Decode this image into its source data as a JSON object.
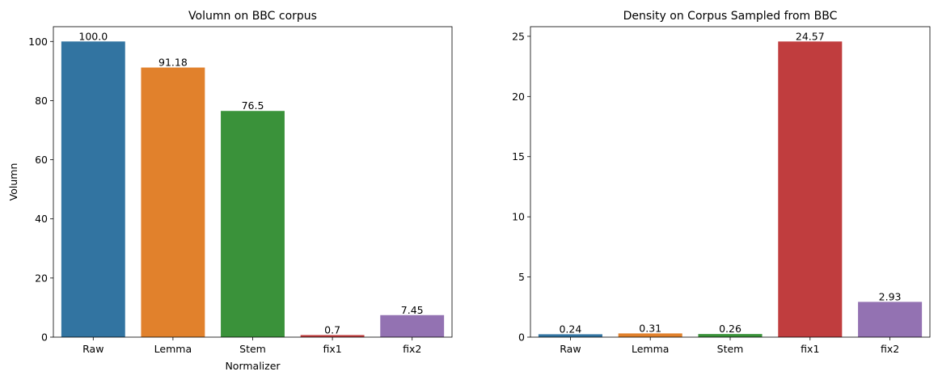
{
  "chart_data": [
    {
      "type": "bar",
      "title": "Volumn on BBC corpus",
      "xlabel": "Normalizer",
      "ylabel": "Volumn",
      "categories": [
        "Raw",
        "Lemma",
        "Stem",
        "fix1",
        "fix2"
      ],
      "values": [
        100.0,
        91.18,
        76.5,
        0.7,
        7.45
      ],
      "value_labels": [
        "100.0",
        "91.18",
        "76.5",
        "0.7",
        "7.45"
      ],
      "colors": [
        "#3274a1",
        "#e1812c",
        "#3a923a",
        "#c03d3e",
        "#9372b2"
      ],
      "ylim": [
        0,
        105
      ],
      "yticks": [
        0,
        20,
        40,
        60,
        80,
        100
      ],
      "grid": false,
      "legend": "none"
    },
    {
      "type": "bar",
      "title": "Density on Corpus Sampled from BBC",
      "xlabel": "",
      "ylabel": "",
      "categories": [
        "Raw",
        "Lemma",
        "Stem",
        "fix1",
        "fix2"
      ],
      "values": [
        0.24,
        0.31,
        0.26,
        24.57,
        2.93
      ],
      "value_labels": [
        "0.24",
        "0.31",
        "0.26",
        "24.57",
        "2.93"
      ],
      "colors": [
        "#3274a1",
        "#e1812c",
        "#3a923a",
        "#c03d3e",
        "#9372b2"
      ],
      "ylim": [
        0,
        25.8
      ],
      "yticks": [
        0,
        5,
        10,
        15,
        20,
        25
      ],
      "grid": false,
      "legend": "none"
    }
  ]
}
